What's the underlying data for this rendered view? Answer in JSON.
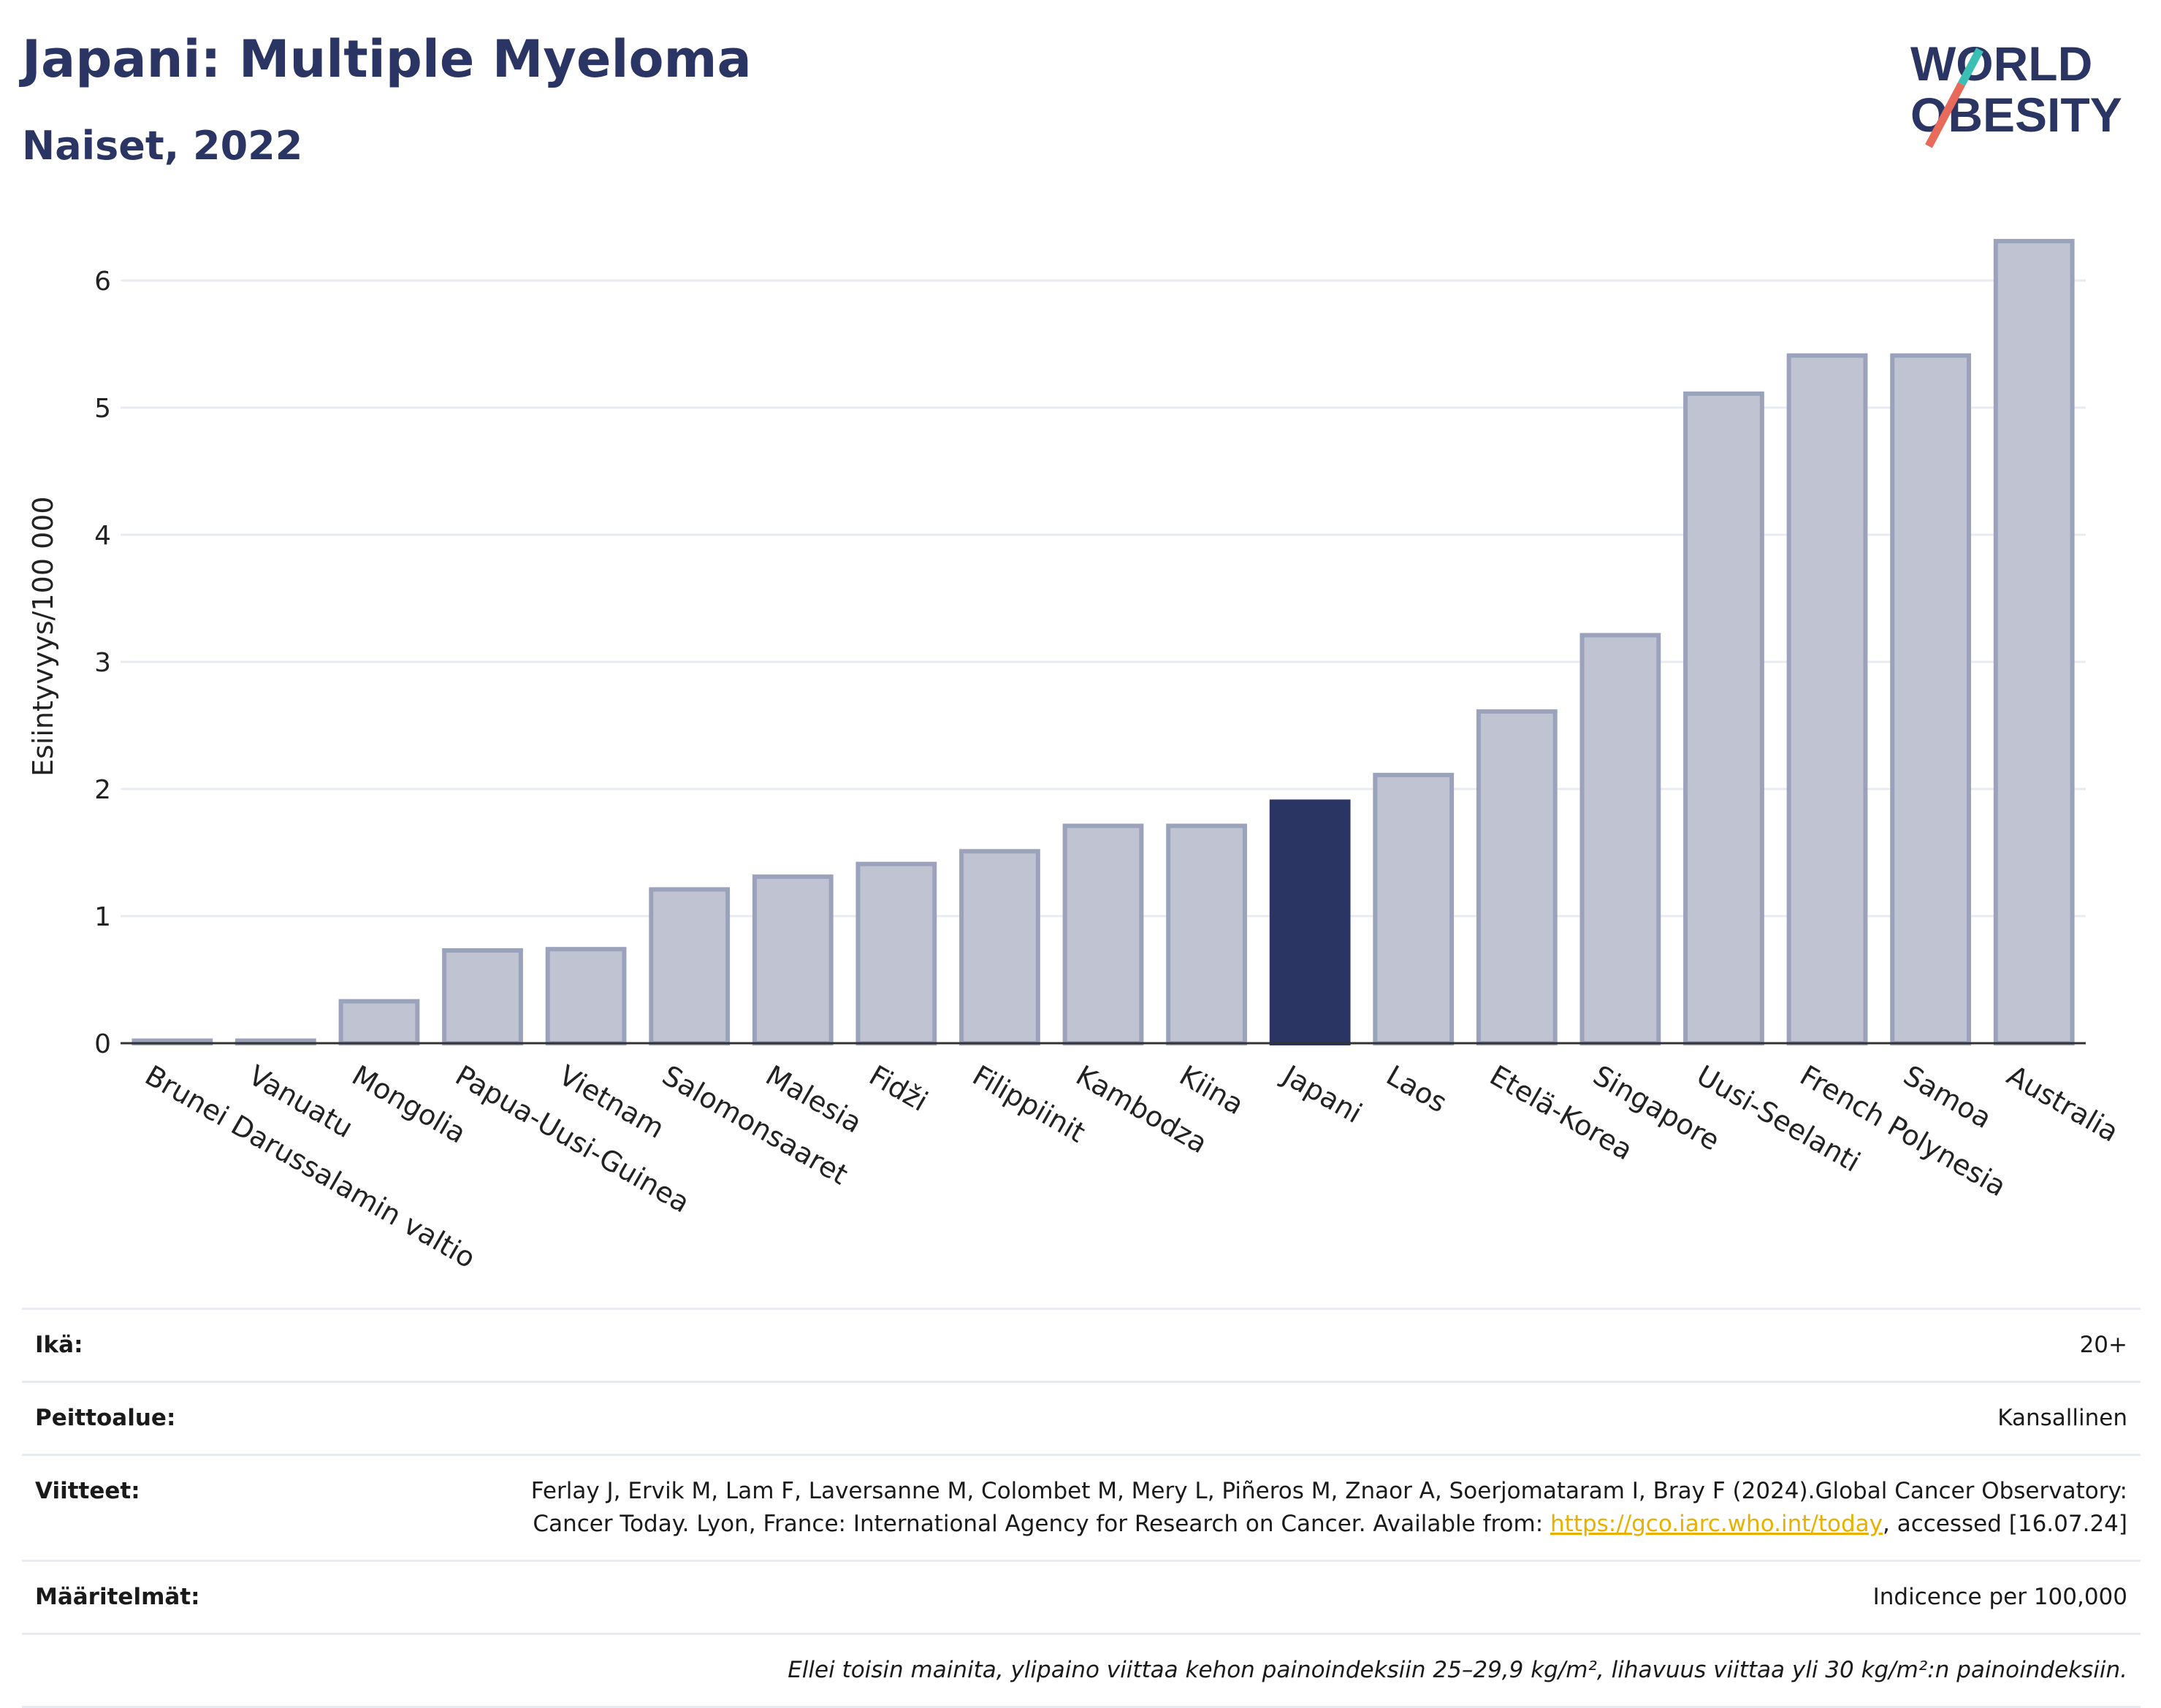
{
  "header": {
    "title": "Japani: Multiple Myeloma",
    "subtitle": "Naiset, 2022"
  },
  "logo": {
    "line1": "WORLD",
    "line2": "OBESITY",
    "text_color": "#2b3564",
    "slash_colors": [
      "#e86a5a",
      "#3bbfb5"
    ]
  },
  "chart_data": {
    "type": "bar",
    "ylabel": "Esiintyvyys/100 000",
    "xlabel": "",
    "ylim": [
      0,
      6.5
    ],
    "yticks": [
      0,
      1,
      2,
      3,
      4,
      5,
      6
    ],
    "grid": true,
    "highlight": "Japani",
    "colors": {
      "bar": "#c0c4d2",
      "bar_edge": "#9ba2bb",
      "highlight": "#2b3564",
      "grid": "#e8ebf2",
      "axis": "#333333"
    },
    "categories": [
      "Brunei Darussalamin valtio",
      "Vanuatu",
      "Mongolia",
      "Papua-Uusi-Guinea",
      "Vietnam",
      "Salomonsaaret",
      "Malesia",
      "Fidži",
      "Filippiinit",
      "Kambodza",
      "Kiina",
      "Japani",
      "Laos",
      "Etelä-Korea",
      "Singapore",
      "Uusi-Seelanti",
      "French Polynesia",
      "Samoa",
      "Australia"
    ],
    "values": [
      0.02,
      0.02,
      0.33,
      0.73,
      0.74,
      1.21,
      1.31,
      1.41,
      1.51,
      1.71,
      1.71,
      1.9,
      2.11,
      2.61,
      3.21,
      5.11,
      5.41,
      5.41,
      6.31
    ]
  },
  "info": {
    "rows": [
      {
        "label": "Ikä:",
        "value": "20+"
      },
      {
        "label": "Peittoalue:",
        "value": "Kansallinen"
      },
      {
        "label": "Viitteet:",
        "ref_text_1": "Ferlay J, Ervik M, Lam F, Laversanne M, Colombet M, Mery L, Piñeros M, Znaor A, Soerjomataram I, Bray F (2024).Global Cancer Observatory: Cancer Today. Lyon, France: International Agency for Research on Cancer. Available from: ",
        "ref_link": "https://gco.iarc.who.int/today",
        "ref_text_2": ", accessed [16.07.24]"
      },
      {
        "label": "Määritelmät:",
        "value": "Indicence per 100,000"
      }
    ],
    "note": "Ellei toisin mainita, ylipaino viittaa kehon painoindeksiin 25–29,9 kg/m², lihavuus viittaa yli 30 kg/m²:n painoindeksiin."
  }
}
